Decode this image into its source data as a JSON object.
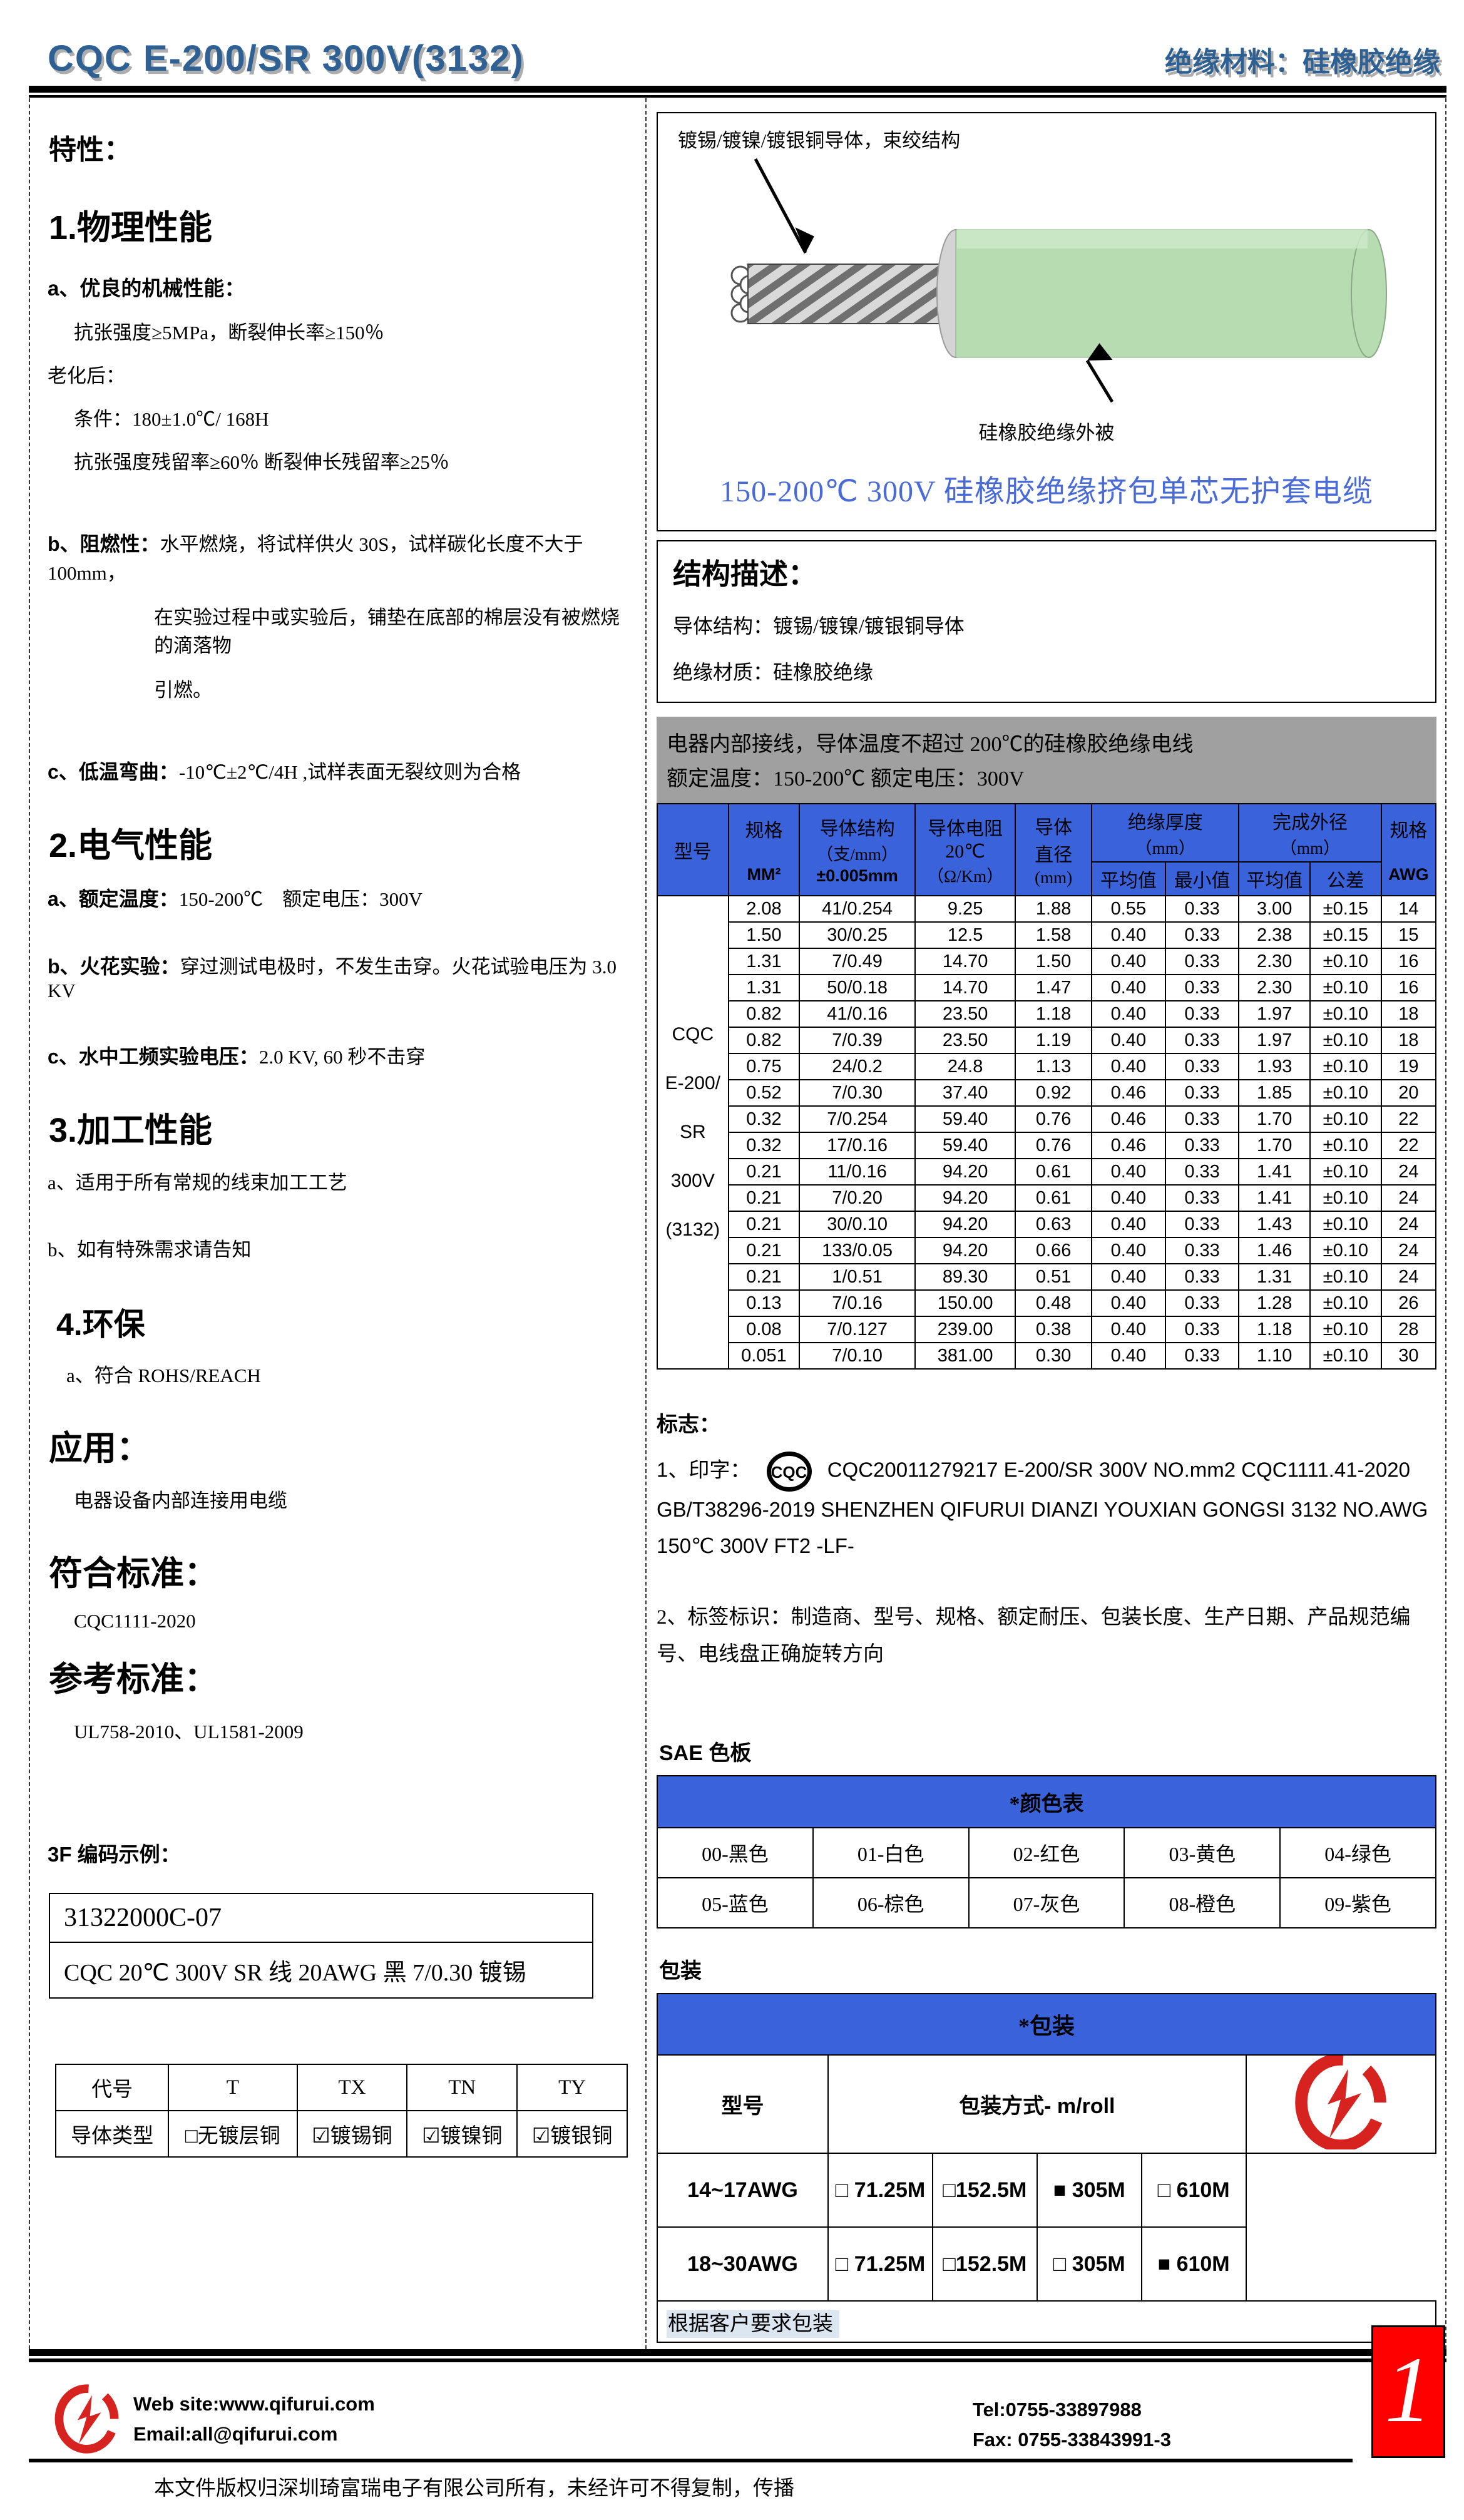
{
  "header": {
    "title": "CQC E-200/SR 300V(3132)",
    "subtitle": "绝缘材料：硅橡胶绝缘"
  },
  "left": {
    "features_title": "特性：",
    "s1_title": "1.物理性能",
    "s1_a_bold": "a、优良的机械性能：",
    "s1_a_line": "抗张强度≥5MPa，断裂伸长率≥150％",
    "s1_aging": "老化后：",
    "s1_cond": "条件：180±1.0℃/ 168H",
    "s1_resid": "抗张强度残留率≥60％  断裂伸长残留率≥25％",
    "s1_b_bold": "b、阻燃性：",
    "s1_b_text": "水平燃烧，将试样供火 30S，试样碳化长度不大于 100mm，",
    "s1_b_line2": "在实验过程中或实验后，铺垫在底部的棉层没有被燃烧的滴落物",
    "s1_b_line3": "引燃。",
    "s1_c_bold": "c、低温弯曲：",
    "s1_c_text": "-10℃±2℃/4H ,试样表面无裂纹则为合格",
    "s2_title": "2.电气性能",
    "s2_a_bold": "a、额定温度：",
    "s2_a_text": "150-200℃　额定电压：300V",
    "s2_b_bold": "b、火花实验：",
    "s2_b_text": "穿过测试电极时，不发生击穿。火花试验电压为 3.0 KV",
    "s2_c_bold": "c、水中工频实验电压：",
    "s2_c_text": "2.0 KV, 60 秒不击穿",
    "s3_title": "3.加工性能",
    "s3_a": "a、适用于所有常规的线束加工工艺",
    "s3_b": "b、如有特殊需求请告知",
    "s4_title": "4.环保",
    "s4_a": "a、符合 ROHS/REACH",
    "app_title": "应用：",
    "app_line": "电器设备内部连接用电缆",
    "comply_title": "符合标准：",
    "comply_line": "CQC1111-2020",
    "ref_title": "参考标准：",
    "ref_line": "UL758-2010、UL1581-2009",
    "code_title": "3F 编码示例：",
    "code_row1": "31322000C-07",
    "code_row2": "CQC 20℃  300V SR 线  20AWG  黑  7/0.30 镀锡",
    "conductor_table": {
      "headers": [
        "代号",
        "T",
        "TX",
        "TN",
        "TY"
      ],
      "row_label": "导体类型",
      "values": [
        "□无镀层铜",
        "☑镀锡铜",
        "☑镀镍铜",
        "☑镀银铜"
      ]
    }
  },
  "cable_box": {
    "label_conductor": "镀锡/镀镍/镀银铜导体，束绞结构",
    "label_insulation": "硅橡胶绝缘外被",
    "title": "150-200℃  300V 硅橡胶绝缘挤包单芯无护套电缆",
    "insulation_color": "#b8dcb2",
    "conductor_color": "#c8c8c8"
  },
  "structure_desc": {
    "title": "结构描述：",
    "line1": "导体结构：镀锡/镀镍/镀银铜导体",
    "line2": "绝缘材质：硅橡胶绝缘"
  },
  "usage_box": {
    "line1": "电器内部接线，导体温度不超过 200℃的硅橡胶绝缘电线",
    "line2": "额定温度：150-200℃  额定电压：300V"
  },
  "spec_table": {
    "hdr_model": "型号",
    "hdr_size": "规格",
    "hdr_size_unit": "MM²",
    "hdr_struct1": "导体结构",
    "hdr_struct2": "（支/mm）",
    "hdr_struct3": "±0.005mm",
    "hdr_res1": "导体电阻",
    "hdr_res2": "20℃",
    "hdr_res3": "（Ω/Km）",
    "hdr_dia1": "导体",
    "hdr_dia2": "直径",
    "hdr_dia3": "(mm)",
    "hdr_ins": "绝缘厚度",
    "hdr_ins_unit": "（mm）",
    "hdr_od": "完成外径",
    "hdr_od_unit": "（mm）",
    "hdr_avg1": "平均值",
    "hdr_min": "最小值",
    "hdr_avg2": "平均值",
    "hdr_tol": "公差",
    "hdr_awg_size": "规格",
    "hdr_awg": "AWG",
    "model_lines": [
      "CQC",
      "E-200/",
      "SR",
      "300V",
      "(3132)"
    ],
    "rows": [
      [
        "2.08",
        "41/0.254",
        "9.25",
        "1.88",
        "0.55",
        "0.33",
        "3.00",
        "±0.15",
        "14"
      ],
      [
        "1.50",
        "30/0.25",
        "12.5",
        "1.58",
        "0.40",
        "0.33",
        "2.38",
        "±0.15",
        "15"
      ],
      [
        "1.31",
        "7/0.49",
        "14.70",
        "1.50",
        "0.40",
        "0.33",
        "2.30",
        "±0.10",
        "16"
      ],
      [
        "1.31",
        "50/0.18",
        "14.70",
        "1.47",
        "0.40",
        "0.33",
        "2.30",
        "±0.10",
        "16"
      ],
      [
        "0.82",
        "41/0.16",
        "23.50",
        "1.18",
        "0.40",
        "0.33",
        "1.97",
        "±0.10",
        "18"
      ],
      [
        "0.82",
        "7/0.39",
        "23.50",
        "1.19",
        "0.40",
        "0.33",
        "1.97",
        "±0.10",
        "18"
      ],
      [
        "0.75",
        "24/0.2",
        "24.8",
        "1.13",
        "0.40",
        "0.33",
        "1.93",
        "±0.10",
        "19"
      ],
      [
        "0.52",
        "7/0.30",
        "37.40",
        "0.92",
        "0.46",
        "0.33",
        "1.85",
        "±0.10",
        "20"
      ],
      [
        "0.32",
        "7/0.254",
        "59.40",
        "0.76",
        "0.46",
        "0.33",
        "1.70",
        "±0.10",
        "22"
      ],
      [
        "0.32",
        "17/0.16",
        "59.40",
        "0.76",
        "0.46",
        "0.33",
        "1.70",
        "±0.10",
        "22"
      ],
      [
        "0.21",
        "11/0.16",
        "94.20",
        "0.61",
        "0.40",
        "0.33",
        "1.41",
        "±0.10",
        "24"
      ],
      [
        "0.21",
        "7/0.20",
        "94.20",
        "0.61",
        "0.40",
        "0.33",
        "1.41",
        "±0.10",
        "24"
      ],
      [
        "0.21",
        "30/0.10",
        "94.20",
        "0.63",
        "0.40",
        "0.33",
        "1.43",
        "±0.10",
        "24"
      ],
      [
        "0.21",
        "133/0.05",
        "94.20",
        "0.66",
        "0.40",
        "0.33",
        "1.46",
        "±0.10",
        "24"
      ],
      [
        "0.21",
        "1/0.51",
        "89.30",
        "0.51",
        "0.40",
        "0.33",
        "1.31",
        "±0.10",
        "24"
      ],
      [
        "0.13",
        "7/0.16",
        "150.00",
        "0.48",
        "0.40",
        "0.33",
        "1.28",
        "±0.10",
        "26"
      ],
      [
        "0.08",
        "7/0.127",
        "239.00",
        "0.38",
        "0.40",
        "0.33",
        "1.18",
        "±0.10",
        "28"
      ],
      [
        "0.051",
        "7/0.10",
        "381.00",
        "0.30",
        "0.40",
        "0.33",
        "1.10",
        "±0.10",
        "30"
      ]
    ]
  },
  "marking": {
    "title": "标志：",
    "line1_prefix": "1、印字：",
    "logo_text": "CQC",
    "line1_text": "CQC20011279217   E-200/SR   300V   NO.mm2   CQC1111.41-2020 GB/T38296-2019 SHENZHEN QIFURUI DIANZI YOUXIAN GONGSI     3132 NO.AWG 150℃  300V FT2 -LF-",
    "line2": "2、标签标识：制造商、型号、规格、额定耐压、包装长度、生产日期、产品规范编号、电线盘正确旋转方向"
  },
  "sae": {
    "section_title": "SAE 色板",
    "header": "*颜色表",
    "rows": [
      [
        "00-黑色",
        "01-白色",
        "02-红色",
        "03-黄色",
        "04-绿色"
      ],
      [
        "05-蓝色",
        "06-棕色",
        "07-灰色",
        "08-橙色",
        "09-紫色"
      ]
    ]
  },
  "packaging": {
    "section_title": "包装",
    "header": "*包装",
    "model_col": "型号",
    "method_col": "包装方式- m/roll",
    "rows": [
      {
        "model": "14~17AWG",
        "options": [
          "□ 71.25M",
          "□152.5M",
          "■  305M",
          "□  610M"
        ]
      },
      {
        "model": "18~30AWG",
        "options": [
          "□ 71.25M",
          "□152.5M",
          "□ 305M",
          "■  610M"
        ]
      }
    ],
    "note": "根据客户要求包装"
  },
  "footer": {
    "website": "Web site:www.qifurui.com",
    "email": "Email:all@qifurui.com",
    "tel": "Tel:0755-33897988",
    "fax": "Fax: 0755-33843991-3",
    "copyright": "本文件版权归深圳琦富瑞电子有限公司所有，未经许可不得复制，传播",
    "page_number": "1",
    "brand_red": "#d6231f"
  }
}
